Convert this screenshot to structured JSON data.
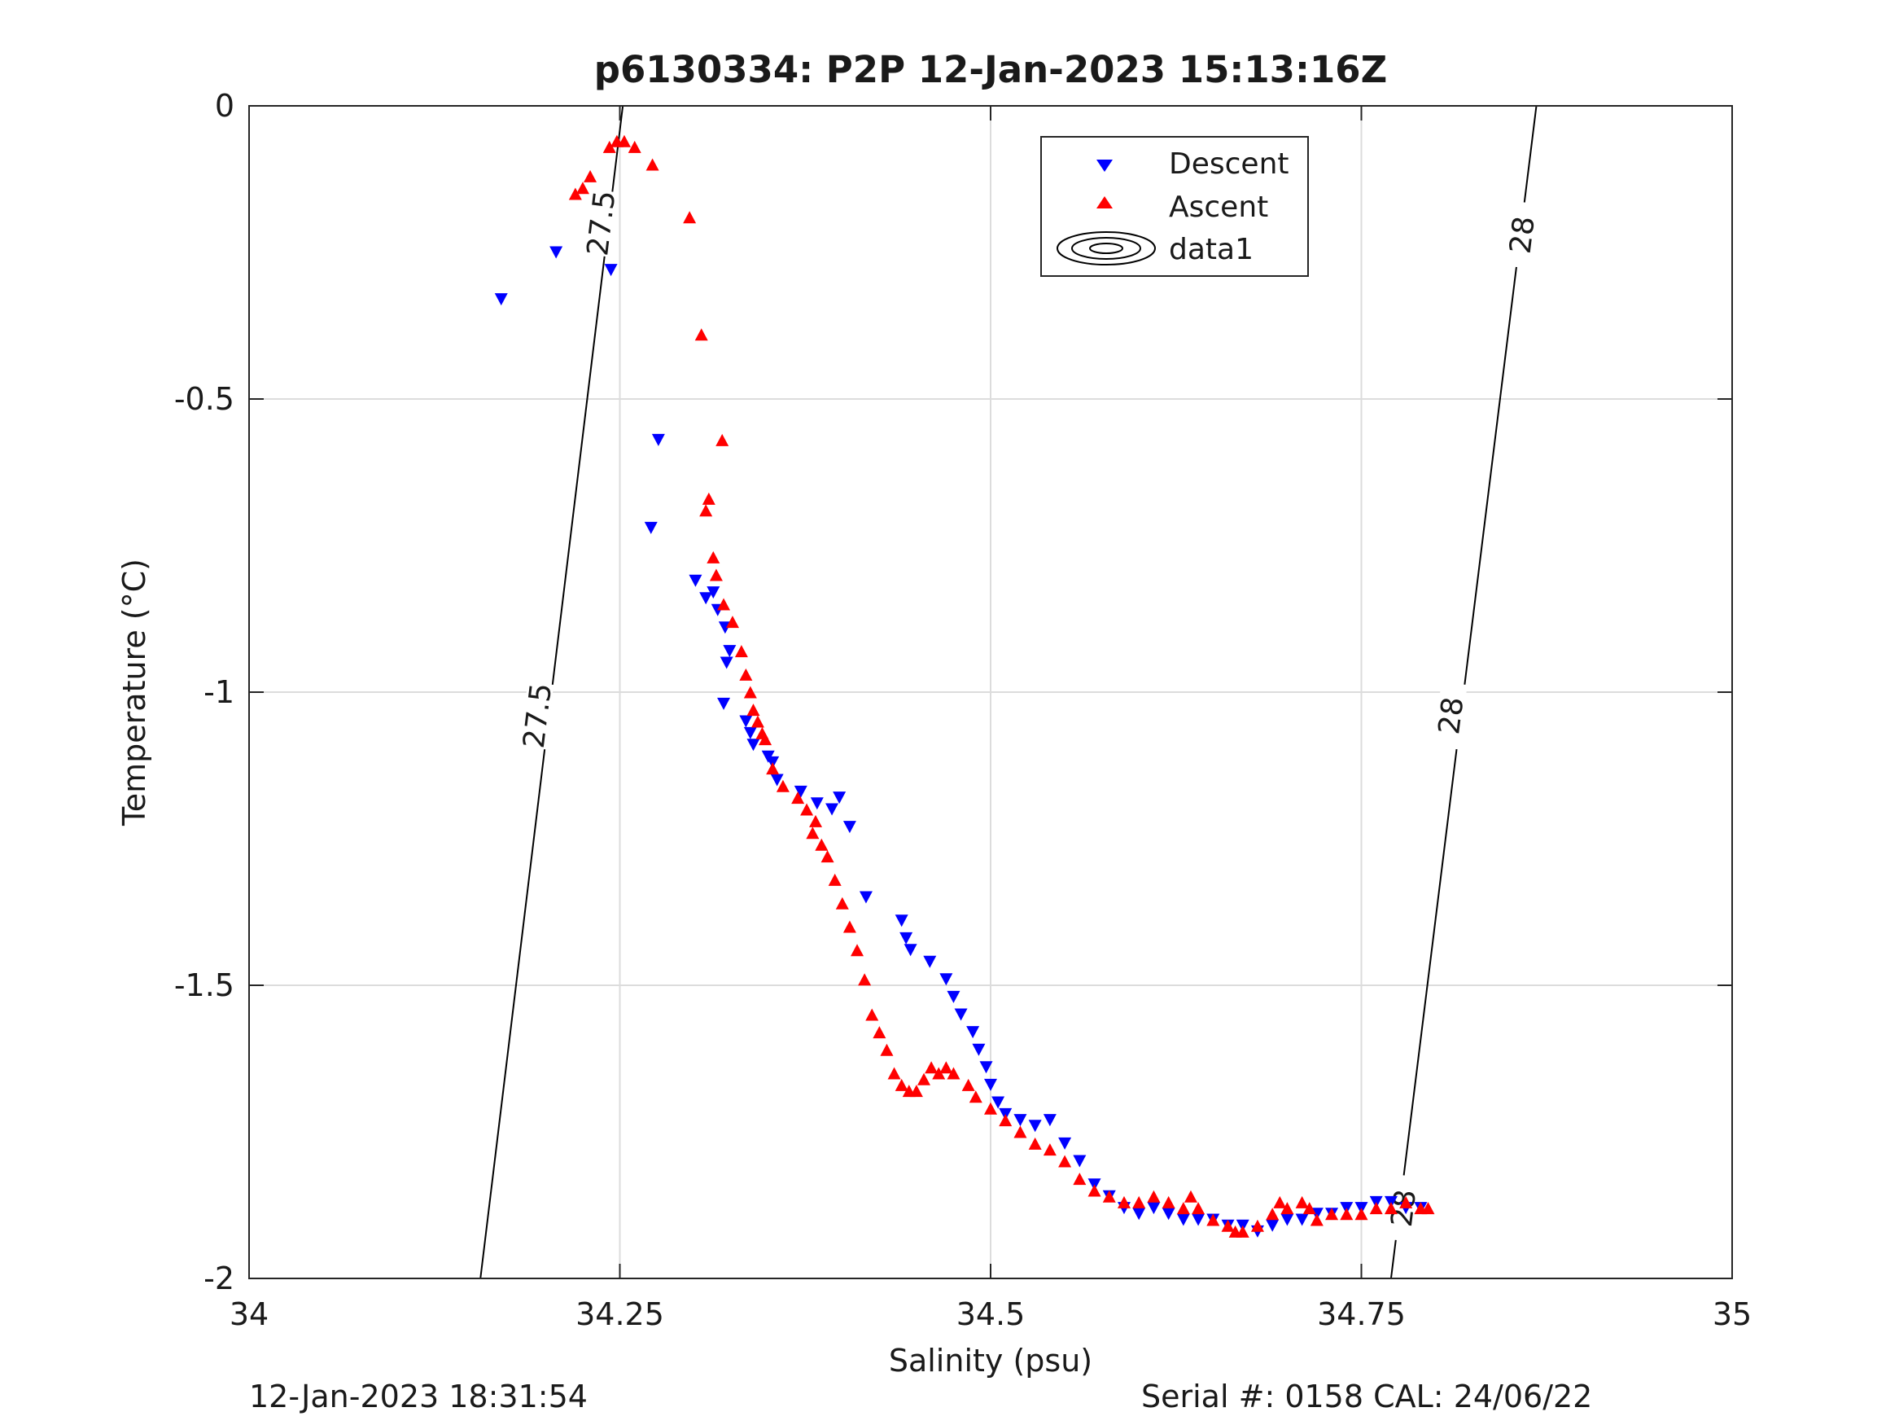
{
  "chart_data": {
    "type": "scatter",
    "title": "p6130334: P2P 12-Jan-2023 15:13:16Z",
    "xlabel": "Salinity (psu)",
    "ylabel": "Temperature (°C)",
    "xlim": [
      34,
      35
    ],
    "ylim": [
      -2,
      0
    ],
    "xticks": [
      34,
      34.25,
      34.5,
      34.75,
      35
    ],
    "xtick_labels": [
      "34",
      "34.25",
      "34.5",
      "34.75",
      "35"
    ],
    "yticks": [
      0,
      -0.5,
      -1,
      -1.5,
      -2
    ],
    "ytick_labels": [
      "0",
      "-0.5",
      "-1",
      "-1.5",
      "-2"
    ],
    "grid": true,
    "legend_position": "top-right",
    "legend": [
      {
        "label": "Descent",
        "marker": "triangle-down",
        "color": "#0000ff"
      },
      {
        "label": "Ascent",
        "marker": "triangle-up",
        "color": "#ff0000"
      },
      {
        "label": "data1",
        "marker": "contour",
        "color": "#000000"
      }
    ],
    "contours": [
      {
        "label": "27.5",
        "points": [
          [
            34.156,
            -2.0
          ],
          [
            34.252,
            0.0
          ]
        ],
        "label_positions": [
          [
            34.194,
            -1.04
          ],
          [
            34.237,
            -0.2
          ]
        ]
      },
      {
        "label": "28",
        "points": [
          [
            34.77,
            -2.0
          ],
          [
            34.868,
            0.0
          ]
        ],
        "label_positions": [
          [
            34.81,
            -1.04
          ],
          [
            34.858,
            -0.22
          ]
        ],
        "extra_label_positions": [
          [
            34.778,
            -1.88
          ]
        ]
      }
    ],
    "series": [
      {
        "name": "Descent",
        "marker": "triangle-down",
        "color": "#0000ff",
        "points": [
          [
            34.17,
            -0.33
          ],
          [
            34.207,
            -0.25
          ],
          [
            34.244,
            -0.28
          ],
          [
            34.276,
            -0.57
          ],
          [
            34.271,
            -0.72
          ],
          [
            34.301,
            -0.81
          ],
          [
            34.308,
            -0.84
          ],
          [
            34.313,
            -0.83
          ],
          [
            34.316,
            -0.86
          ],
          [
            34.321,
            -0.89
          ],
          [
            34.324,
            -0.93
          ],
          [
            34.322,
            -0.95
          ],
          [
            34.32,
            -1.02
          ],
          [
            34.335,
            -1.05
          ],
          [
            34.338,
            -1.07
          ],
          [
            34.34,
            -1.09
          ],
          [
            34.35,
            -1.11
          ],
          [
            34.353,
            -1.12
          ],
          [
            34.356,
            -1.15
          ],
          [
            34.372,
            -1.17
          ],
          [
            34.383,
            -1.19
          ],
          [
            34.393,
            -1.2
          ],
          [
            34.398,
            -1.18
          ],
          [
            34.405,
            -1.23
          ],
          [
            34.416,
            -1.35
          ],
          [
            34.44,
            -1.39
          ],
          [
            34.443,
            -1.42
          ],
          [
            34.446,
            -1.44
          ],
          [
            34.459,
            -1.46
          ],
          [
            34.47,
            -1.49
          ],
          [
            34.475,
            -1.52
          ],
          [
            34.48,
            -1.55
          ],
          [
            34.488,
            -1.58
          ],
          [
            34.492,
            -1.61
          ],
          [
            34.497,
            -1.64
          ],
          [
            34.5,
            -1.67
          ],
          [
            34.505,
            -1.7
          ],
          [
            34.51,
            -1.72
          ],
          [
            34.52,
            -1.73
          ],
          [
            34.53,
            -1.74
          ],
          [
            34.54,
            -1.73
          ],
          [
            34.55,
            -1.77
          ],
          [
            34.56,
            -1.8
          ],
          [
            34.57,
            -1.84
          ],
          [
            34.58,
            -1.86
          ],
          [
            34.59,
            -1.88
          ],
          [
            34.6,
            -1.89
          ],
          [
            34.61,
            -1.88
          ],
          [
            34.62,
            -1.89
          ],
          [
            34.63,
            -1.9
          ],
          [
            34.64,
            -1.9
          ],
          [
            34.65,
            -1.9
          ],
          [
            34.66,
            -1.91
          ],
          [
            34.67,
            -1.91
          ],
          [
            34.68,
            -1.92
          ],
          [
            34.69,
            -1.91
          ],
          [
            34.7,
            -1.9
          ],
          [
            34.71,
            -1.9
          ],
          [
            34.72,
            -1.89
          ],
          [
            34.73,
            -1.89
          ],
          [
            34.74,
            -1.88
          ],
          [
            34.75,
            -1.88
          ],
          [
            34.76,
            -1.87
          ],
          [
            34.77,
            -1.87
          ],
          [
            34.78,
            -1.88
          ],
          [
            34.79,
            -1.88
          ]
        ]
      },
      {
        "name": "Ascent",
        "marker": "triangle-up",
        "color": "#ff0000",
        "points": [
          [
            34.22,
            -0.15
          ],
          [
            34.225,
            -0.14
          ],
          [
            34.23,
            -0.12
          ],
          [
            34.243,
            -0.07
          ],
          [
            34.248,
            -0.06
          ],
          [
            34.253,
            -0.06
          ],
          [
            34.26,
            -0.07
          ],
          [
            34.272,
            -0.1
          ],
          [
            34.297,
            -0.19
          ],
          [
            34.305,
            -0.39
          ],
          [
            34.319,
            -0.57
          ],
          [
            34.31,
            -0.67
          ],
          [
            34.308,
            -0.69
          ],
          [
            34.313,
            -0.77
          ],
          [
            34.315,
            -0.8
          ],
          [
            34.32,
            -0.85
          ],
          [
            34.326,
            -0.88
          ],
          [
            34.332,
            -0.93
          ],
          [
            34.335,
            -0.97
          ],
          [
            34.338,
            -1.0
          ],
          [
            34.34,
            -1.03
          ],
          [
            34.343,
            -1.05
          ],
          [
            34.346,
            -1.07
          ],
          [
            34.348,
            -1.08
          ],
          [
            34.353,
            -1.13
          ],
          [
            34.36,
            -1.16
          ],
          [
            34.37,
            -1.18
          ],
          [
            34.376,
            -1.2
          ],
          [
            34.382,
            -1.22
          ],
          [
            34.38,
            -1.24
          ],
          [
            34.386,
            -1.26
          ],
          [
            34.39,
            -1.28
          ],
          [
            34.395,
            -1.32
          ],
          [
            34.4,
            -1.36
          ],
          [
            34.405,
            -1.4
          ],
          [
            34.41,
            -1.44
          ],
          [
            34.415,
            -1.49
          ],
          [
            34.42,
            -1.55
          ],
          [
            34.425,
            -1.58
          ],
          [
            34.43,
            -1.61
          ],
          [
            34.435,
            -1.65
          ],
          [
            34.44,
            -1.67
          ],
          [
            34.445,
            -1.68
          ],
          [
            34.45,
            -1.68
          ],
          [
            34.455,
            -1.66
          ],
          [
            34.46,
            -1.64
          ],
          [
            34.465,
            -1.65
          ],
          [
            34.47,
            -1.64
          ],
          [
            34.475,
            -1.65
          ],
          [
            34.485,
            -1.67
          ],
          [
            34.49,
            -1.69
          ],
          [
            34.5,
            -1.71
          ],
          [
            34.51,
            -1.73
          ],
          [
            34.52,
            -1.75
          ],
          [
            34.53,
            -1.77
          ],
          [
            34.54,
            -1.78
          ],
          [
            34.55,
            -1.8
          ],
          [
            34.56,
            -1.83
          ],
          [
            34.57,
            -1.85
          ],
          [
            34.58,
            -1.86
          ],
          [
            34.59,
            -1.87
          ],
          [
            34.6,
            -1.87
          ],
          [
            34.61,
            -1.86
          ],
          [
            34.62,
            -1.87
          ],
          [
            34.63,
            -1.88
          ],
          [
            34.635,
            -1.86
          ],
          [
            34.64,
            -1.88
          ],
          [
            34.65,
            -1.9
          ],
          [
            34.66,
            -1.91
          ],
          [
            34.665,
            -1.92
          ],
          [
            34.67,
            -1.92
          ],
          [
            34.68,
            -1.91
          ],
          [
            34.69,
            -1.89
          ],
          [
            34.695,
            -1.87
          ],
          [
            34.7,
            -1.88
          ],
          [
            34.71,
            -1.87
          ],
          [
            34.715,
            -1.88
          ],
          [
            34.72,
            -1.9
          ],
          [
            34.73,
            -1.89
          ],
          [
            34.74,
            -1.89
          ],
          [
            34.75,
            -1.89
          ],
          [
            34.76,
            -1.88
          ],
          [
            34.77,
            -1.88
          ],
          [
            34.78,
            -1.87
          ],
          [
            34.79,
            -1.88
          ],
          [
            34.795,
            -1.88
          ]
        ]
      }
    ]
  },
  "footer": {
    "timestamp": "12-Jan-2023 18:31:54",
    "serial": "Serial #: 0158  CAL: 24/06/22"
  }
}
